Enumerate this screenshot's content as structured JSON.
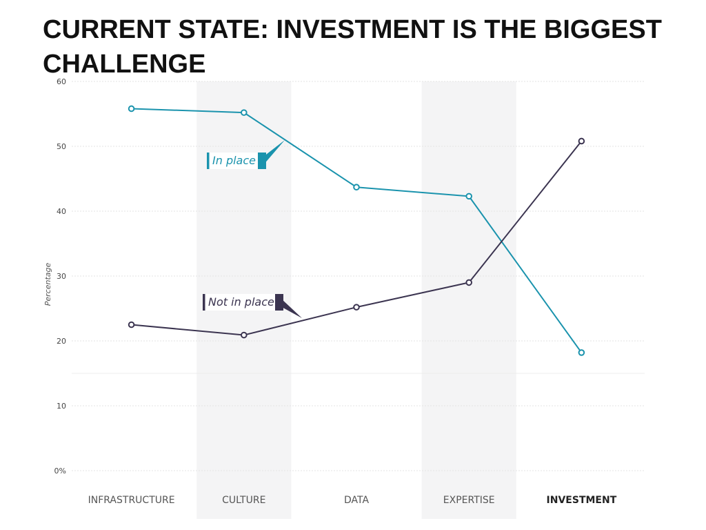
{
  "page": {
    "title": "CURRENT STATE: INVESTMENT IS THE BIGGEST CHALLENGE"
  },
  "chart_data": {
    "type": "line",
    "categories": [
      "INFRASTRUCTURE",
      "CULTURE",
      "DATA",
      "EXPERTISE",
      "INVESTMENT"
    ],
    "highlighted_category": "INVESTMENT",
    "shaded_categories": [
      "CULTURE",
      "EXPERTISE"
    ],
    "series": [
      {
        "name": "In place",
        "color": "#1a93ad",
        "values": [
          55.8,
          55.2,
          43.7,
          42.3,
          18.2
        ]
      },
      {
        "name": "Not in place",
        "color": "#3b3450",
        "values": [
          22.5,
          20.9,
          25.2,
          29.0,
          50.8
        ]
      }
    ],
    "ylabel": "Percentage",
    "ylim": [
      0,
      60
    ],
    "yticks": [
      {
        "value": 0,
        "label": "0%"
      },
      {
        "value": 10,
        "label": "10"
      },
      {
        "value": 20,
        "label": "20"
      },
      {
        "value": 30,
        "label": "30"
      },
      {
        "value": 40,
        "label": "40"
      },
      {
        "value": 50,
        "label": "50"
      },
      {
        "value": 60,
        "label": "60"
      }
    ],
    "grid": true,
    "legend": "inline labels"
  }
}
